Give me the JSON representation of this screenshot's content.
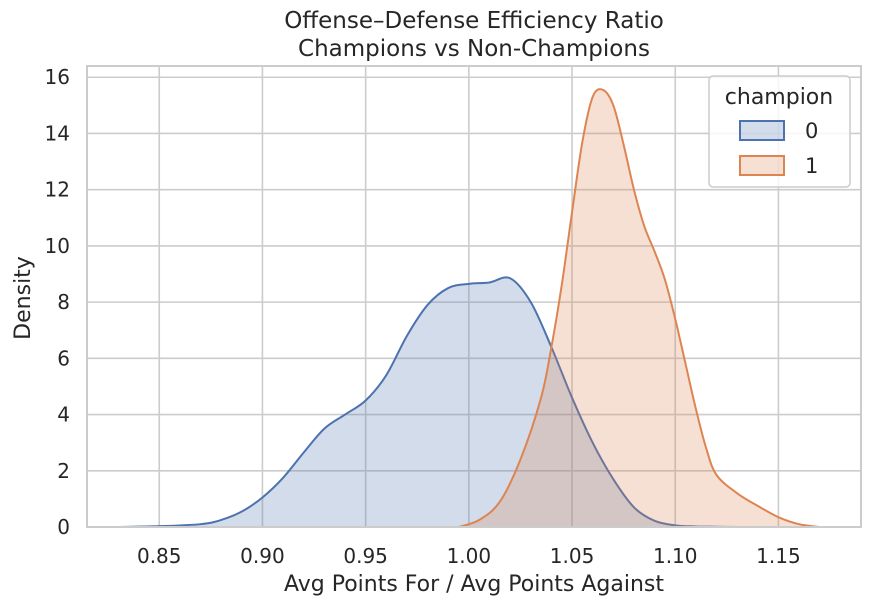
{
  "chart_data": {
    "type": "area",
    "title": [
      "Offense–Defense Efficiency Ratio",
      "Champions vs Non-Champions"
    ],
    "xlabel": "Avg Points For / Avg Points Against",
    "ylabel": "Density",
    "xlim": [
      0.815,
      1.19
    ],
    "ylim": [
      0,
      16.4
    ],
    "xticks": [
      0.85,
      0.9,
      0.95,
      1.0,
      1.05,
      1.1,
      1.15
    ],
    "xtick_labels": [
      "0.85",
      "0.90",
      "0.95",
      "1.00",
      "1.05",
      "1.10",
      "1.15"
    ],
    "yticks": [
      0,
      2,
      4,
      6,
      8,
      10,
      12,
      14,
      16
    ],
    "ytick_labels": [
      "0",
      "2",
      "4",
      "6",
      "8",
      "10",
      "12",
      "14",
      "16"
    ],
    "grid": true,
    "legend": {
      "title": "champion",
      "position": "top-right"
    },
    "series": [
      {
        "name": "0",
        "color": "#4c72b0",
        "fill_opacity": 0.25,
        "x": [
          0.83,
          0.85,
          0.87,
          0.88,
          0.89,
          0.9,
          0.91,
          0.92,
          0.93,
          0.94,
          0.95,
          0.96,
          0.97,
          0.98,
          0.99,
          1.0,
          1.01,
          1.02,
          1.03,
          1.04,
          1.05,
          1.06,
          1.07,
          1.08,
          1.09,
          1.1,
          1.11,
          1.12,
          1.13
        ],
        "y": [
          0.0,
          0.03,
          0.1,
          0.25,
          0.55,
          1.05,
          1.75,
          2.65,
          3.5,
          4.0,
          4.5,
          5.4,
          6.8,
          7.9,
          8.5,
          8.65,
          8.7,
          8.85,
          8.0,
          6.4,
          4.6,
          3.0,
          1.7,
          0.7,
          0.22,
          0.06,
          0.02,
          0.01,
          0.0
        ]
      },
      {
        "name": "1",
        "color": "#dd8452",
        "fill_opacity": 0.25,
        "x": [
          0.995,
          1.005,
          1.015,
          1.025,
          1.035,
          1.04,
          1.045,
          1.05,
          1.055,
          1.06,
          1.065,
          1.07,
          1.075,
          1.08,
          1.085,
          1.09,
          1.095,
          1.1,
          1.105,
          1.11,
          1.115,
          1.12,
          1.13,
          1.14,
          1.15,
          1.16,
          1.17
        ],
        "y": [
          0.0,
          0.25,
          0.9,
          2.4,
          4.6,
          6.4,
          8.6,
          11.2,
          13.7,
          15.3,
          15.55,
          15.0,
          13.6,
          12.0,
          10.7,
          9.8,
          8.8,
          7.4,
          5.8,
          4.2,
          2.8,
          1.85,
          1.2,
          0.75,
          0.35,
          0.1,
          0.0
        ]
      }
    ]
  }
}
